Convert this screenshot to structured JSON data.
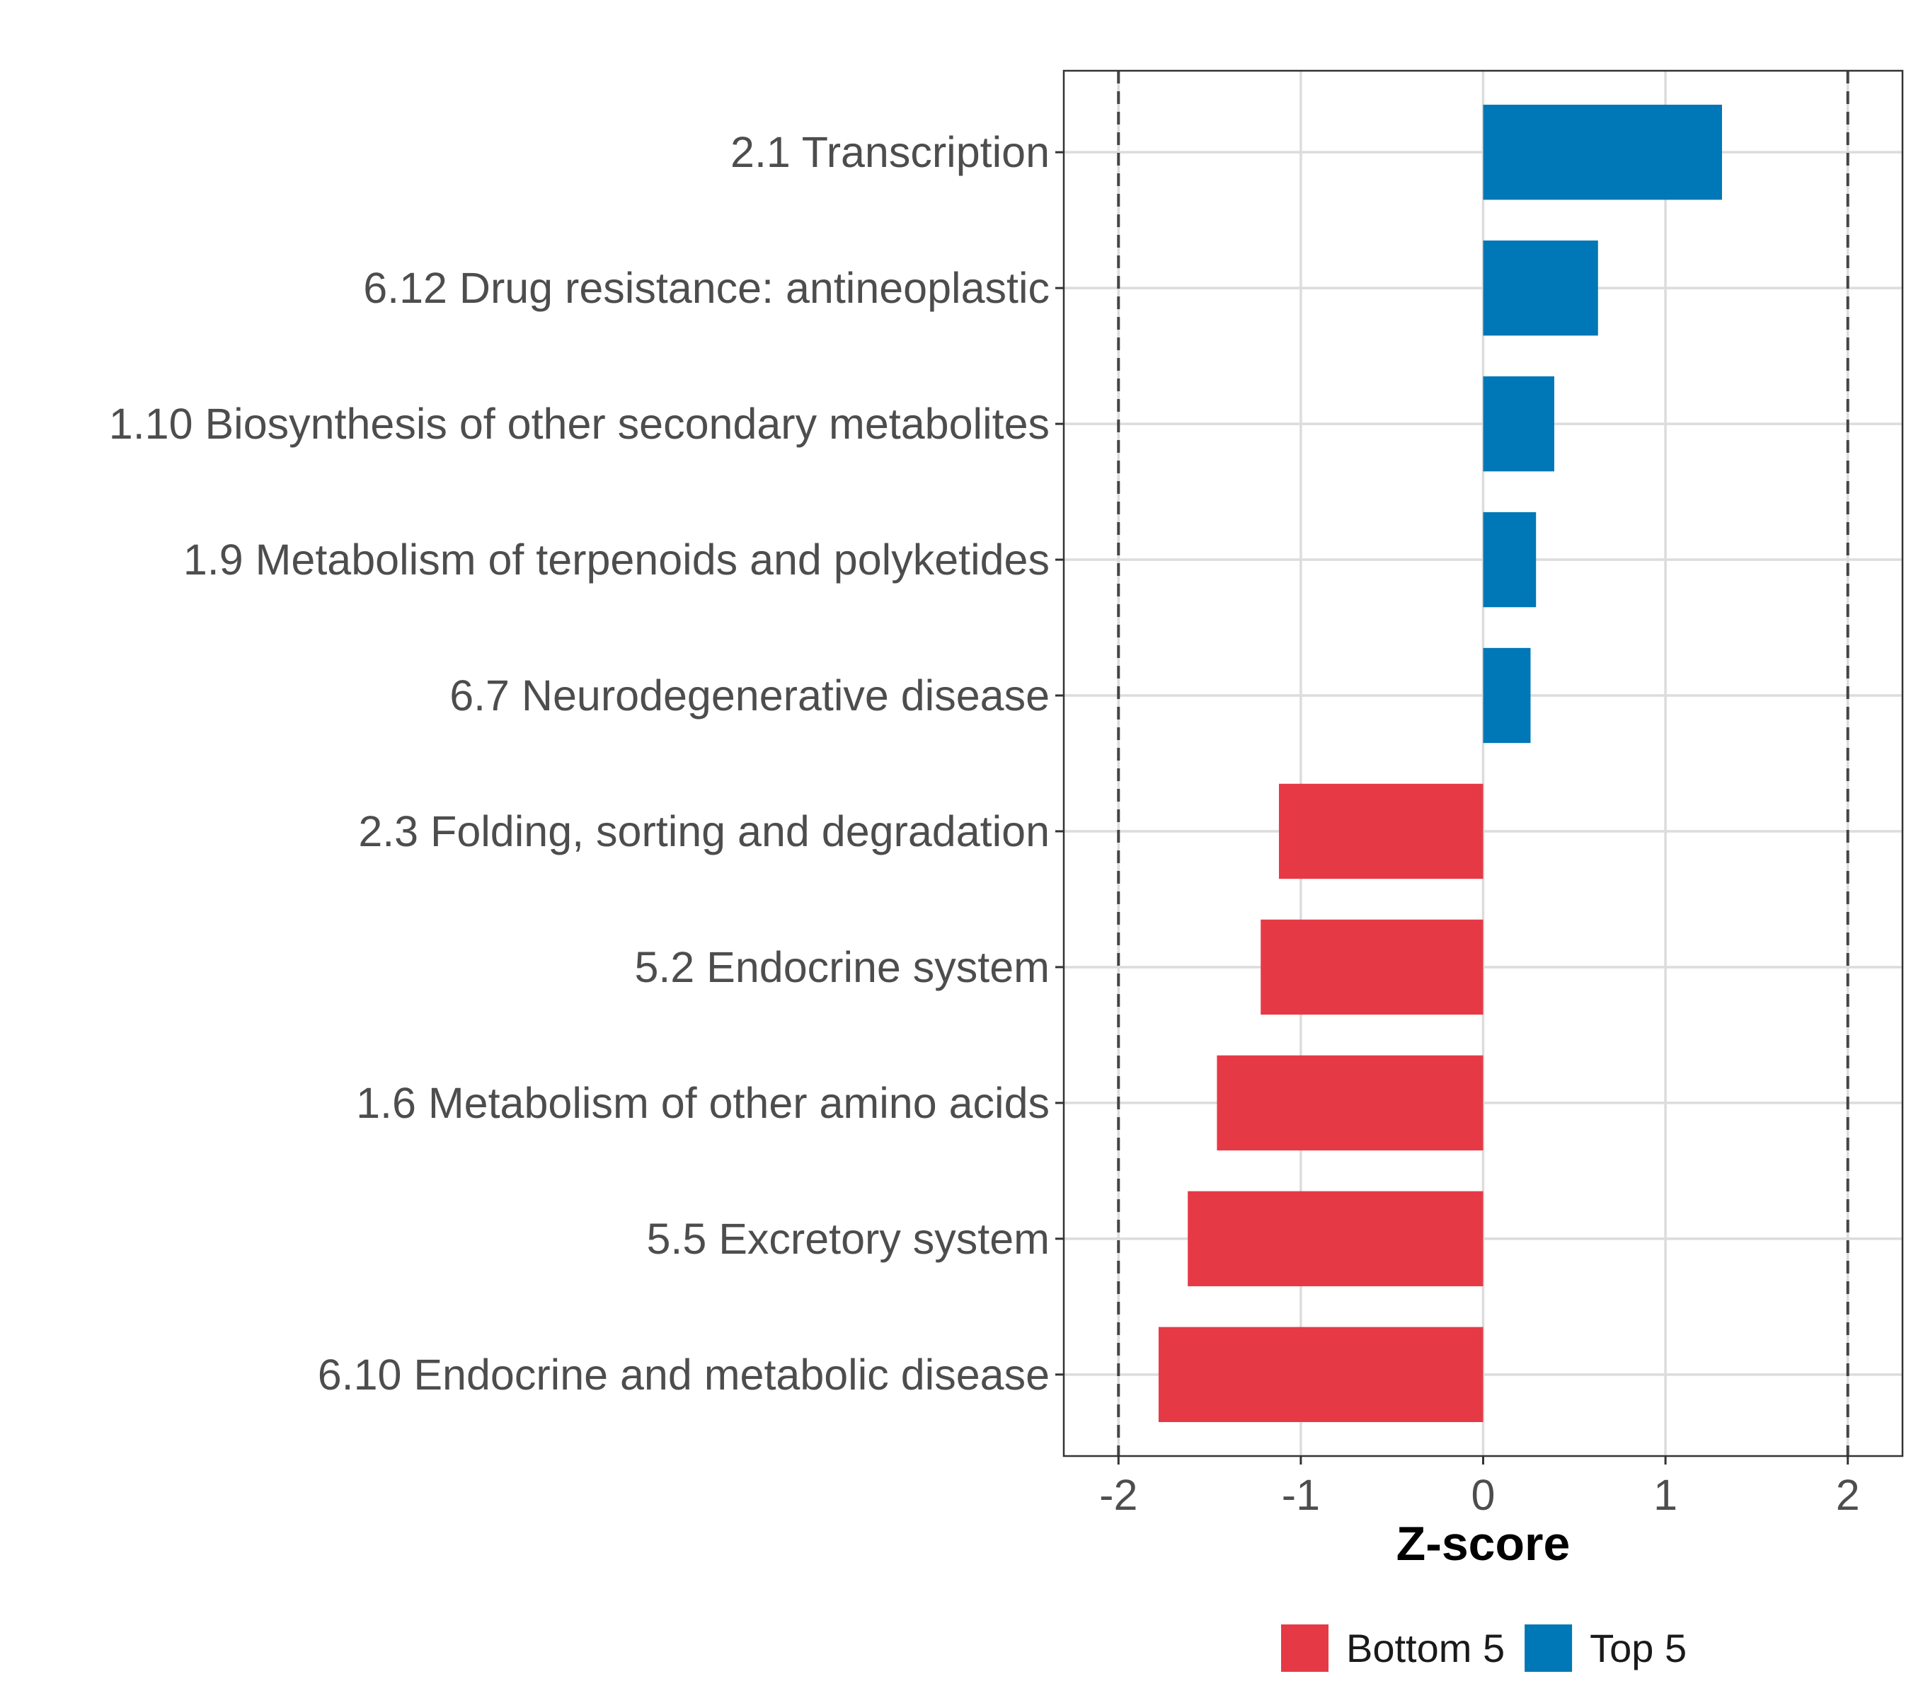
{
  "chart_data": {
    "type": "bar",
    "orientation": "horizontal",
    "title": "",
    "xlabel": "Z-score",
    "ylabel": "",
    "xlim": [
      -2.3,
      2.3
    ],
    "xticks": [
      -2,
      -1,
      0,
      1,
      2
    ],
    "xtick_labels": [
      "-2",
      "-1",
      "0",
      "1",
      "2"
    ],
    "reference_lines": [
      -2,
      2
    ],
    "grid": true,
    "categories": [
      "2.1 Transcription",
      "6.12 Drug resistance: antineoplastic",
      "1.10 Biosynthesis of other secondary metabolites",
      "1.9 Metabolism of terpenoids and polyketides",
      "6.7 Neurodegenerative disease",
      "2.3 Folding, sorting and degradation",
      "5.2 Endocrine system",
      "1.6 Metabolism of other amino acids",
      "5.5 Excretory system",
      "6.10 Endocrine and metabolic disease"
    ],
    "values": [
      1.31,
      0.63,
      0.39,
      0.29,
      0.26,
      -1.12,
      -1.22,
      -1.46,
      -1.62,
      -1.78
    ],
    "groups": [
      "Top 5",
      "Top 5",
      "Top 5",
      "Top 5",
      "Top 5",
      "Bottom 5",
      "Bottom 5",
      "Bottom 5",
      "Bottom 5",
      "Bottom 5"
    ],
    "legend": {
      "position": "bottom",
      "entries": [
        {
          "name": "Bottom 5",
          "color": "#E63946"
        },
        {
          "name": "Top 5",
          "color": "#0077B6"
        }
      ]
    }
  }
}
